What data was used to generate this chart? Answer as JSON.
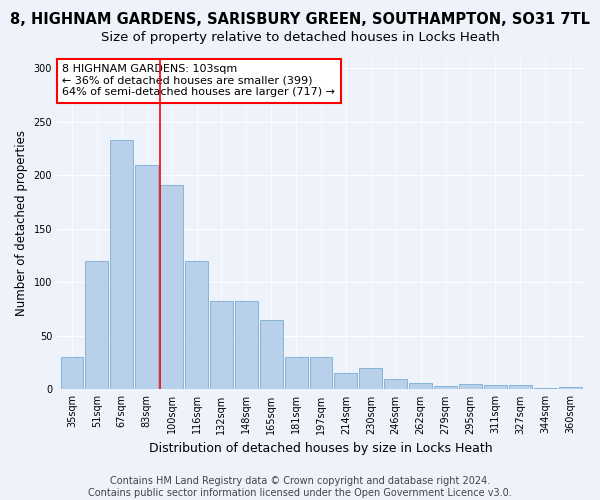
{
  "title": "8, HIGHNAM GARDENS, SARISBURY GREEN, SOUTHAMPTON, SO31 7TL",
  "subtitle": "Size of property relative to detached houses in Locks Heath",
  "xlabel": "Distribution of detached houses by size in Locks Heath",
  "ylabel": "Number of detached properties",
  "categories": [
    "35sqm",
    "51sqm",
    "67sqm",
    "83sqm",
    "100sqm",
    "116sqm",
    "132sqm",
    "148sqm",
    "165sqm",
    "181sqm",
    "197sqm",
    "214sqm",
    "230sqm",
    "246sqm",
    "262sqm",
    "279sqm",
    "295sqm",
    "311sqm",
    "327sqm",
    "344sqm",
    "360sqm"
  ],
  "values": [
    30,
    120,
    233,
    210,
    191,
    120,
    83,
    83,
    65,
    30,
    30,
    15,
    20,
    10,
    6,
    3,
    5,
    4,
    4,
    1,
    2
  ],
  "bar_color": "#b8d0ea",
  "bar_edge_color": "#7aadd4",
  "annotation_text": "8 HIGHNAM GARDENS: 103sqm\n← 36% of detached houses are smaller (399)\n64% of semi-detached houses are larger (717) →",
  "annotation_box_color": "white",
  "annotation_box_edge_color": "red",
  "vline_x_index": 4,
  "footer": "Contains HM Land Registry data © Crown copyright and database right 2024.\nContains public sector information licensed under the Open Government Licence v3.0.",
  "bg_color": "#eef2fa",
  "ylim": [
    0,
    310
  ],
  "title_fontsize": 10.5,
  "subtitle_fontsize": 9.5,
  "xlabel_fontsize": 9,
  "ylabel_fontsize": 8.5,
  "tick_fontsize": 7,
  "footer_fontsize": 7,
  "annotation_fontsize": 8
}
